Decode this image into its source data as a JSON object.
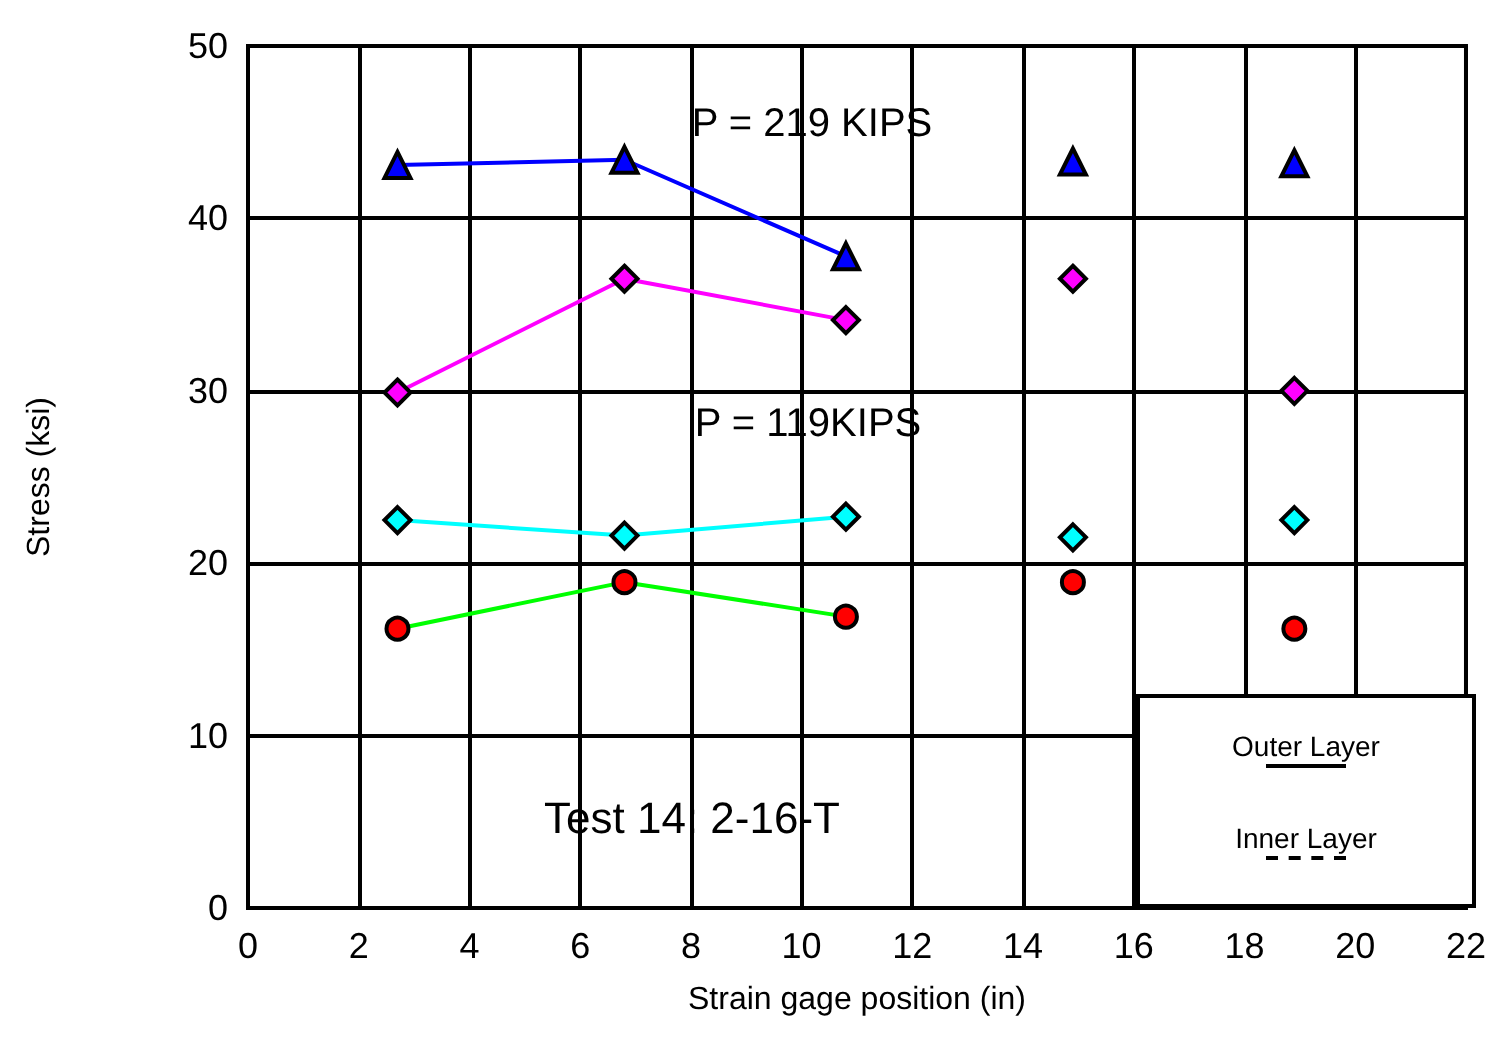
{
  "chart_data": {
    "type": "scatter",
    "xlabel": "Strain gage position (in)",
    "ylabel": "Stress (ksi)",
    "xlim": [
      0,
      22
    ],
    "xticks": [
      0,
      2,
      4,
      6,
      8,
      10,
      12,
      14,
      16,
      18,
      20,
      22
    ],
    "ylim": [
      0,
      50
    ],
    "yticks": [
      0,
      10,
      20,
      30,
      40,
      50
    ],
    "grid": true,
    "series": [
      {
        "type": "line",
        "color": "#0000ff",
        "marker": "none",
        "x": [
          2.7,
          6.8,
          10.8
        ],
        "values": [
          43.1,
          43.4,
          37.8
        ]
      },
      {
        "type": "line",
        "color": "#ff00ff",
        "marker": "none",
        "x": [
          2.7,
          6.8,
          10.8
        ],
        "values": [
          29.9,
          36.5,
          34.1
        ]
      },
      {
        "type": "line",
        "color": "#00ffff",
        "marker": "none",
        "x": [
          2.7,
          6.8,
          10.8
        ],
        "values": [
          22.5,
          21.6,
          22.7
        ]
      },
      {
        "type": "line",
        "color": "#00ff00",
        "marker": "none",
        "x": [
          2.7,
          6.8,
          10.8
        ],
        "values": [
          16.2,
          18.9,
          16.9
        ]
      },
      {
        "color": "#0000ff",
        "marker": "triangle",
        "x": [
          2.7,
          6.8,
          10.8,
          14.9,
          18.9
        ],
        "values": [
          43.1,
          43.4,
          37.8,
          43.3,
          43.2
        ]
      },
      {
        "color": "#ff00ff",
        "marker": "diamond",
        "x": [
          2.7,
          6.8,
          10.8,
          14.9,
          18.9
        ],
        "values": [
          29.9,
          36.5,
          34.1,
          36.5,
          30.0
        ]
      },
      {
        "color": "#00ffff",
        "marker": "diamond",
        "x": [
          2.7,
          6.8,
          10.8,
          14.9,
          18.9
        ],
        "values": [
          22.5,
          21.6,
          22.7,
          21.5,
          22.5
        ]
      },
      {
        "color": "#ff0000",
        "marker": "circle",
        "x": [
          2.7,
          6.8,
          10.8,
          14.9,
          18.9
        ],
        "values": [
          16.2,
          18.9,
          16.9,
          18.9,
          16.2
        ]
      }
    ],
    "annotations": [
      "P = 219 KIPS",
      "P = 119KIPS",
      "Test 14: 2-16-T",
      "Outer Layer",
      "Inner Layer"
    ]
  }
}
